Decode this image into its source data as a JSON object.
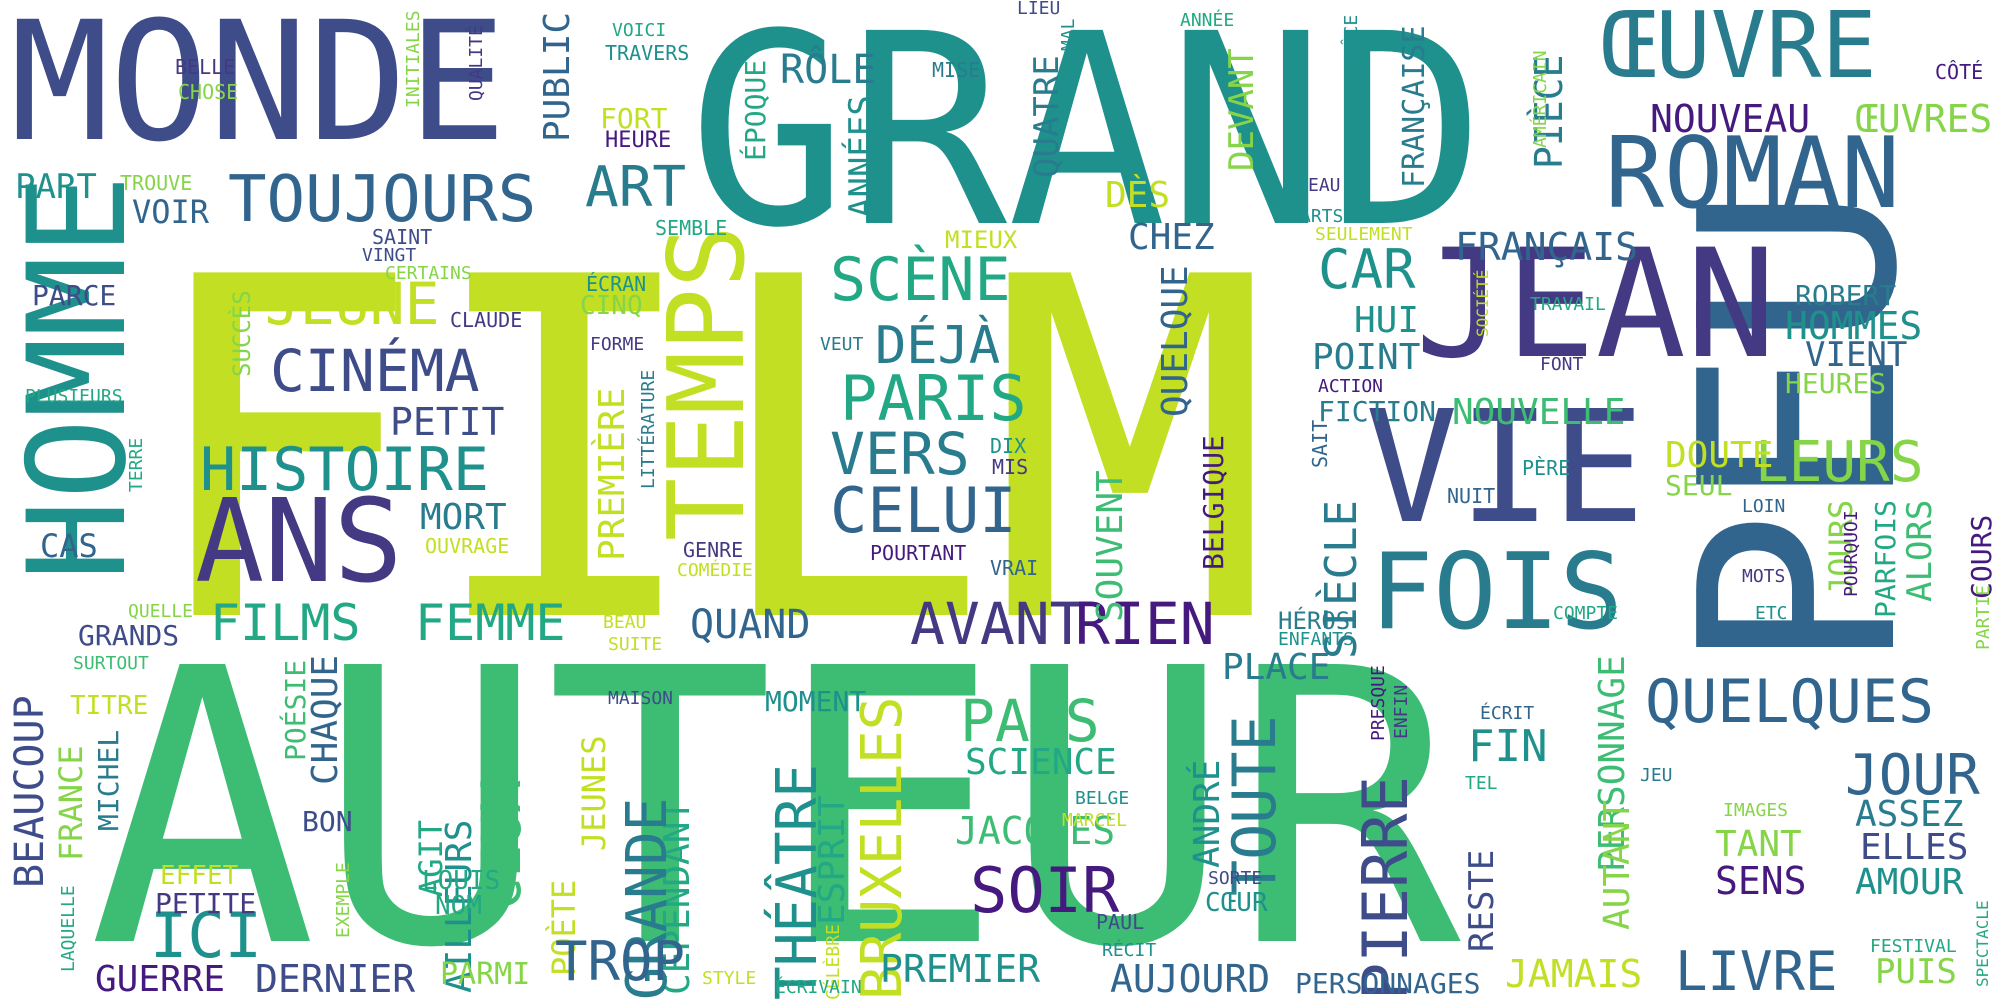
{
  "palette": {
    "yellow": "#c2df23",
    "light_green": "#86d549",
    "green": "#3dbc74",
    "teal_green": "#22a884",
    "teal": "#1f918d",
    "blue_teal": "#287c8e",
    "blue": "#32658e",
    "indigo": "#3e4c8a",
    "violet": "#443983",
    "purple": "#45197e"
  },
  "words": {
    "film": "FILM",
    "auteur": "AUTEUR",
    "grand": "GRAND",
    "peu": "PEU",
    "monde": "MONDE",
    "homme": "HOMME",
    "jean": "JEAN",
    "vie": "VIE",
    "temps": "TEMPS",
    "oeuvre": "ŒUVRE",
    "roman": "ROMAN",
    "fois": "FOIS",
    "ans": "ANS",
    "toujours": "TOUJOURS",
    "art": "ART",
    "jeune": "JEUNE",
    "cinema": "CINÉMA",
    "histoire": "HISTOIRE",
    "scene": "SCÈNE",
    "deja": "DÉJÀ",
    "paris": "PARIS",
    "vers": "VERS",
    "celui": "CELUI",
    "avant": "AVANT",
    "rien": "RIEN",
    "films": "FILMS",
    "femme": "FEMME",
    "quelques": "QUELQUES",
    "leurs": "LEURS",
    "car": "CAR",
    "point": "POINT",
    "nouvelle": "NOUVELLE",
    "francais": "FRANÇAIS",
    "nouveau": "NOUVEAU",
    "oeuvres": "ŒUVRES",
    "piece": "PIÈCE",
    "francaise": "FRANÇAISE",
    "hommes": "HOMMES",
    "vient": "VIENT",
    "robert": "ROBERT",
    "heures": "HEURES",
    "jour": "JOUR",
    "assez": "ASSEZ",
    "elles": "ELLES",
    "amour": "AMOUR",
    "sens": "SENS",
    "tant": "TANT",
    "livre": "LIVRE",
    "puis": "PUIS",
    "festival": "FESTIVAL",
    "personnage": "PERSONNAGE",
    "autant": "AUTANT",
    "jamais": "JAMAIS",
    "reste": "RESTE",
    "fin": "FIN",
    "pierre": "PIERRE",
    "toute": "TOUTE",
    "andre": "ANDRÉ",
    "place": "PLACE",
    "siecle": "SIÈCLE",
    "soir": "SOIR",
    "jacques": "JACQUES",
    "science": "SCIENCE",
    "pays": "PAYS",
    "bruxelles": "BRUXELLES",
    "theatre": "THÉÂTRE",
    "esprit": "ESPRIT",
    "cependant": "CEPENDANT",
    "grande": "GRANDE",
    "poete": "POÈTE",
    "jeunes": "JEUNES",
    "ceux": "CEUX",
    "ailleurs": "AILLEURS",
    "agit": "AGIT",
    "trop": "TROP",
    "premier": "PREMIER",
    "aujourd": "AUJOURD",
    "personnages": "PERSONNAGES",
    "dernier": "DERNIER",
    "guerre": "GUERRE",
    "ici": "ICI",
    "beaucoup": "BEAUCOUP",
    "france": "FRANCE",
    "chaque": "CHAQUE",
    "poesie": "POÉSIE",
    "michel": "MICHEL",
    "quand": "QUAND",
    "mort": "MORT",
    "petit": "PETIT",
    "parce": "PARCE",
    "cas": "CAS",
    "voir": "VOIR",
    "part": "PART",
    "public": "PUBLIC",
    "role": "RÔLE",
    "annees": "ANNÉES",
    "quatre": "QUATRE",
    "epoque": "ÉPOQUE",
    "quelque": "QUELQUE",
    "chez": "CHEZ",
    "devant": "DEVANT",
    "des": "DÈS",
    "hui": "HUI",
    "fiction": "FICTION",
    "souvent": "SOUVENT",
    "premiere": "PREMIÈRE",
    "belgique": "BELGIQUE",
    "doute": "DOUTE",
    "seul": "SEUL",
    "jours": "JOURS",
    "alors": "ALORS",
    "parfois": "PARFOIS",
    "cours": "COURS",
    "grands": "GRANDS",
    "titre": "TITRE",
    "effet": "EFFET",
    "petite": "PETITE",
    "nom": "NOM",
    "louis": "LOUIS",
    "bon": "BON",
    "moment": "MOMENT",
    "succes": "SUCCÈS",
    "mieux": "MIEUX",
    "fort": "FORT",
    "ecran": "ÉCRAN",
    "cinq": "CINQ",
    "claude": "CLAUDE",
    "belle": "BELLE",
    "chose": "CHOSE",
    "qualite": "QUALITÉ",
    "initiales": "INITIALES",
    "voici": "VOICI",
    "travers": "TRAVERS",
    "heure": "HEURE",
    "mise": "MISE",
    "lieu": "LIEU",
    "mal": "MAL",
    "annee": "ANNÉE",
    "grace": "GRÂCE",
    "cote": "CÔTÉ",
    "americain": "AMÉRICAIN",
    "trouve": "TROUVE",
    "saint": "SAINT",
    "vingt": "VINGT",
    "certains": "CERTAINS",
    "semble": "SEMBLE",
    "plusieurs": "PLUSIEURS",
    "terre": "TERRE",
    "ouvrage": "OUVRAGE",
    "genre": "GENRE",
    "comedie": "COMÉDIE",
    "pourtant": "POURTANT",
    "vrai": "VRAI",
    "dix": "DIX",
    "mis": "MIS",
    "litterature": "LITTÉRATURE",
    "forme": "FORME",
    "veut": "VEUT",
    "eau": "EAU",
    "arts": "ARTS",
    "seulement": "SEULEMENT",
    "travail": "TRAVAIL",
    "societe": "SOCIÉTÉ",
    "font": "FONT",
    "action": "ACTION",
    "sait": "SAIT",
    "nuit": "NUIT",
    "pere": "PÈRE",
    "loin": "LOIN",
    "mots": "MOTS",
    "etc": "ETC",
    "pourquoi": "POURQUOI",
    "partie": "PARTIE",
    "compte": "COMPTE",
    "heros": "HÉROS",
    "enfants": "ENFANTS",
    "ecrit": "ÉCRIT",
    "tel": "TEL",
    "jeu": "JEU",
    "images": "IMAGES",
    "spectacle": "SPECTACLE",
    "presque": "PRESQUE",
    "enfin": "ENFIN",
    "quelle": "QUELLE",
    "surtout": "SURTOUT",
    "beau": "BEAU",
    "suite": "SUITE",
    "maison": "MAISON",
    "belge": "BELGE",
    "marcel": "MARCEL",
    "sorte": "SORTE",
    "coeur": "CŒUR",
    "paul": "PAUL",
    "recit": "RÉCIT",
    "celebre": "CÉLÈBRE",
    "ecrivain": "ÉCRIVAIN",
    "style": "STYLE",
    "parmi": "PARMI",
    "exemple": "EXEMPLE",
    "laquelle": "LAQUELLE"
  }
}
